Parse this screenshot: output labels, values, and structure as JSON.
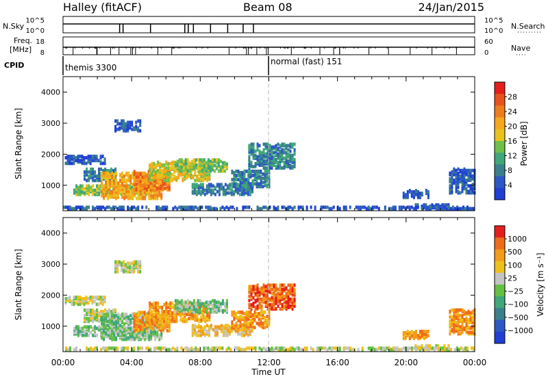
{
  "header": {
    "station": "Halley (fitACF)",
    "beam": "Beam 08",
    "date": "24/Jan/2015"
  },
  "nsky_panel": {
    "left_label": "N.Sky",
    "left_ticks": [
      "10^5",
      "10^0"
    ],
    "right_label": "N.Search",
    "right_ticks": [
      "10^5",
      "10^0"
    ]
  },
  "freq_panel": {
    "left_label_1": "Freq.",
    "left_label_2": "[MHz]",
    "left_ticks": [
      "18",
      "8"
    ],
    "right_label": "Nave",
    "right_ticks": [
      "60",
      "0"
    ]
  },
  "cpid": {
    "label": "CPID",
    "segments": [
      {
        "start_hour": 0,
        "text": "themis 3300"
      },
      {
        "start_hour": 12,
        "text": "normal (fast) 151"
      }
    ]
  },
  "colors": {
    "power_scale": [
      "#1f3fd6",
      "#2b58c6",
      "#3a7f8c",
      "#3fa77a",
      "#6fc04a",
      "#e8c31c",
      "#f6a71a",
      "#ee7d1c",
      "#e8531b",
      "#e51e1b"
    ],
    "velocity_scale": [
      "#1f3fd6",
      "#2b58c6",
      "#3a7f8c",
      "#3fa77a",
      "#62c043",
      "#c4c4c4",
      "#f0c01a",
      "#f49b18",
      "#ef6b1a",
      "#e51e1b"
    ]
  },
  "chart_data": [
    {
      "type": "heatmap",
      "quantity": "power",
      "ylabel": "Slant Range [km]",
      "yticks": [
        "1000",
        "2000",
        "3000",
        "4000"
      ],
      "ylim": [
        180,
        4500
      ],
      "xlim_hours": [
        0,
        24
      ],
      "colorbar_label": "Power [dB]",
      "colorbar_ticks": [
        "4",
        "8",
        "12",
        "16",
        "20",
        "24",
        "28"
      ],
      "colorbar_range": [
        0,
        32
      ],
      "echo_regions": [
        {
          "h0": 0.1,
          "h1": 2.4,
          "r0": 1650,
          "r1": 1900,
          "level": 1
        },
        {
          "h0": 1.2,
          "h1": 3.1,
          "r0": 1100,
          "r1": 1500,
          "level": 2
        },
        {
          "h0": 0.6,
          "h1": 5.3,
          "r0": 650,
          "r1": 950,
          "level": 4
        },
        {
          "h0": 2.2,
          "h1": 5.8,
          "r0": 520,
          "r1": 1350,
          "level": 6
        },
        {
          "h0": 4.1,
          "h1": 6.2,
          "r0": 800,
          "r1": 1400,
          "level": 7
        },
        {
          "h0": 5.0,
          "h1": 8.5,
          "r0": 1100,
          "r1": 1700,
          "level": 5
        },
        {
          "h0": 6.5,
          "h1": 9.5,
          "r0": 1400,
          "r1": 1800,
          "level": 4
        },
        {
          "h0": 7.5,
          "h1": 11.0,
          "r0": 650,
          "r1": 1000,
          "level": 2
        },
        {
          "h0": 9.8,
          "h1": 12.0,
          "r0": 900,
          "r1": 1400,
          "level": 2
        },
        {
          "h0": 10.8,
          "h1": 13.5,
          "r0": 1500,
          "r1": 2300,
          "level": 2
        },
        {
          "h0": 3.0,
          "h1": 4.5,
          "r0": 2700,
          "r1": 3050,
          "level": 1
        },
        {
          "h0": 19.8,
          "h1": 21.3,
          "r0": 550,
          "r1": 800,
          "level": 1
        },
        {
          "h0": 20.5,
          "h1": 22.5,
          "r0": 220,
          "r1": 320,
          "level": 1
        },
        {
          "h0": 22.5,
          "h1": 24.0,
          "r0": 700,
          "r1": 1500,
          "level": 1
        },
        {
          "h0": 0.0,
          "h1": 24.0,
          "r0": 190,
          "r1": 280,
          "level": 1
        }
      ]
    },
    {
      "type": "heatmap",
      "quantity": "velocity",
      "ylabel": "Slant Range [km]",
      "yticks": [
        "1000",
        "2000",
        "3000",
        "4000"
      ],
      "ylim": [
        180,
        4500
      ],
      "xlim_hours": [
        0,
        24
      ],
      "colorbar_label": "Velocity [m s⁻¹]",
      "colorbar_ticks": [
        "1000",
        "500",
        "100",
        "25",
        "−25",
        "−100",
        "−500",
        "−1000"
      ],
      "echo_regions": [
        {
          "h0": 0.1,
          "h1": 2.4,
          "r0": 1650,
          "r1": 1900,
          "level": 5
        },
        {
          "h0": 1.2,
          "h1": 3.1,
          "r0": 1100,
          "r1": 1500,
          "level": 5
        },
        {
          "h0": 0.6,
          "h1": 5.3,
          "r0": 650,
          "r1": 950,
          "level": 4
        },
        {
          "h0": 2.2,
          "h1": 5.8,
          "r0": 520,
          "r1": 1350,
          "level": 4
        },
        {
          "h0": 4.1,
          "h1": 6.2,
          "r0": 800,
          "r1": 1400,
          "level": 7
        },
        {
          "h0": 5.0,
          "h1": 8.5,
          "r0": 1100,
          "r1": 1700,
          "level": 7
        },
        {
          "h0": 6.5,
          "h1": 9.5,
          "r0": 1400,
          "r1": 1800,
          "level": 4
        },
        {
          "h0": 7.5,
          "h1": 11.0,
          "r0": 650,
          "r1": 1000,
          "level": 6
        },
        {
          "h0": 9.8,
          "h1": 12.0,
          "r0": 900,
          "r1": 1400,
          "level": 7
        },
        {
          "h0": 10.8,
          "h1": 13.5,
          "r0": 1500,
          "r1": 2300,
          "level": 8
        },
        {
          "h0": 3.0,
          "h1": 4.5,
          "r0": 2700,
          "r1": 3050,
          "level": 5
        },
        {
          "h0": 19.8,
          "h1": 21.3,
          "r0": 550,
          "r1": 800,
          "level": 7
        },
        {
          "h0": 20.5,
          "h1": 22.5,
          "r0": 220,
          "r1": 320,
          "level": 5
        },
        {
          "h0": 22.5,
          "h1": 24.0,
          "r0": 700,
          "r1": 1500,
          "level": 7
        },
        {
          "h0": 0.0,
          "h1": 24.0,
          "r0": 190,
          "r1": 280,
          "level": 5
        }
      ]
    }
  ],
  "x_axis": {
    "tick_labels": [
      "00:00",
      "04:00",
      "08:00",
      "12:00",
      "16:00",
      "20:00",
      "00:00"
    ],
    "label": "Time UT"
  }
}
